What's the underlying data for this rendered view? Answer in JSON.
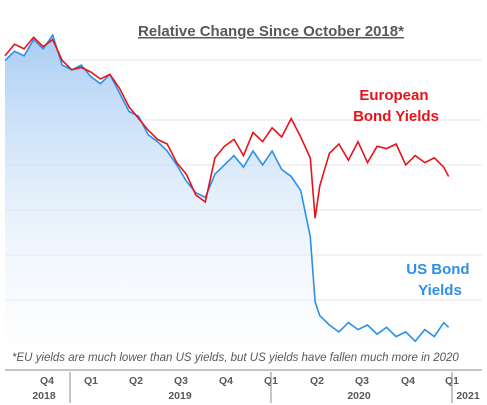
{
  "chart_data": {
    "type": "line",
    "title": "Relative Change Since October 2018*",
    "footnote": "*EU yields are much lower than US yields, but US yields have fallen much more in 2020",
    "x_ticks": [
      "Q4",
      "Q1",
      "Q2",
      "Q3",
      "Q4",
      "Q1",
      "Q2",
      "Q3",
      "Q4",
      "Q1"
    ],
    "x_years": [
      "2018",
      "2019",
      "2020",
      "2021"
    ],
    "grid": "horizontal",
    "legend": "inline labels",
    "colors": {
      "eu": "#e8121b",
      "us": "#2d8fe6",
      "area": "#bcd9f6",
      "text": "#595959"
    },
    "series": [
      {
        "name": "European Bond Yields",
        "label_lines": [
          "European",
          "Bond Yields"
        ],
        "x": [
          0,
          0.02,
          0.04,
          0.06,
          0.08,
          0.1,
          0.12,
          0.14,
          0.16,
          0.18,
          0.2,
          0.22,
          0.24,
          0.26,
          0.28,
          0.3,
          0.32,
          0.34,
          0.36,
          0.38,
          0.4,
          0.42,
          0.44,
          0.46,
          0.48,
          0.5,
          0.52,
          0.54,
          0.56,
          0.58,
          0.6,
          0.62,
          0.64,
          0.65,
          0.66,
          0.68,
          0.7,
          0.72,
          0.74,
          0.76,
          0.78,
          0.8,
          0.82,
          0.84,
          0.86,
          0.88,
          0.9,
          0.92,
          0.93
        ],
        "values": [
          0.88,
          0.93,
          0.91,
          0.96,
          0.92,
          0.95,
          0.86,
          0.82,
          0.83,
          0.81,
          0.78,
          0.8,
          0.74,
          0.66,
          0.61,
          0.56,
          0.52,
          0.5,
          0.42,
          0.37,
          0.28,
          0.25,
          0.44,
          0.49,
          0.52,
          0.45,
          0.55,
          0.51,
          0.57,
          0.53,
          0.61,
          0.53,
          0.44,
          0.18,
          0.32,
          0.46,
          0.5,
          0.43,
          0.51,
          0.42,
          0.49,
          0.48,
          0.5,
          0.41,
          0.45,
          0.42,
          0.44,
          0.4,
          0.36
        ]
      },
      {
        "name": "US Bond Yields",
        "label_lines": [
          "US Bond",
          "Yields"
        ],
        "x": [
          0,
          0.02,
          0.04,
          0.06,
          0.08,
          0.1,
          0.12,
          0.14,
          0.16,
          0.18,
          0.2,
          0.22,
          0.24,
          0.26,
          0.28,
          0.3,
          0.32,
          0.34,
          0.36,
          0.38,
          0.4,
          0.42,
          0.44,
          0.46,
          0.48,
          0.5,
          0.52,
          0.54,
          0.56,
          0.58,
          0.6,
          0.62,
          0.64,
          0.65,
          0.66,
          0.68,
          0.7,
          0.72,
          0.74,
          0.76,
          0.78,
          0.8,
          0.82,
          0.84,
          0.86,
          0.88,
          0.9,
          0.92,
          0.93
        ],
        "values": [
          0.86,
          0.9,
          0.88,
          0.95,
          0.91,
          0.97,
          0.84,
          0.82,
          0.84,
          0.79,
          0.76,
          0.8,
          0.72,
          0.64,
          0.62,
          0.54,
          0.51,
          0.47,
          0.41,
          0.34,
          0.29,
          0.27,
          0.37,
          0.41,
          0.45,
          0.4,
          0.47,
          0.41,
          0.47,
          0.39,
          0.36,
          0.3,
          0.1,
          -0.18,
          -0.24,
          -0.28,
          -0.31,
          -0.27,
          -0.3,
          -0.28,
          -0.32,
          -0.29,
          -0.33,
          -0.31,
          -0.35,
          -0.3,
          -0.33,
          -0.27,
          -0.29
        ]
      }
    ]
  }
}
